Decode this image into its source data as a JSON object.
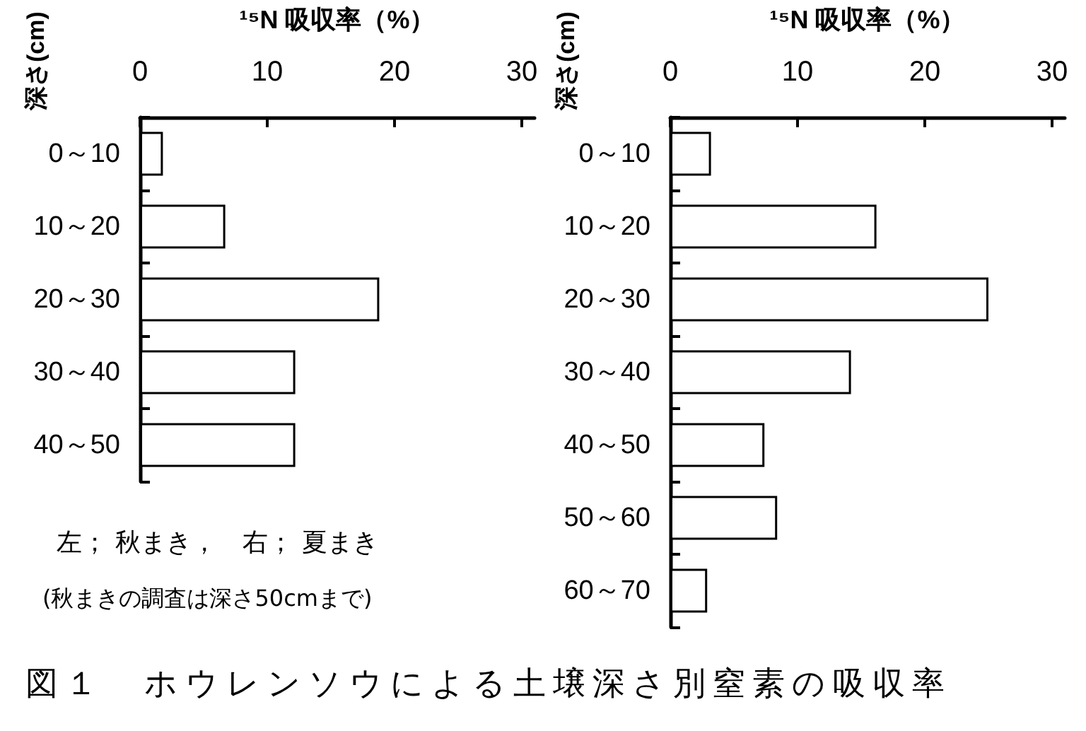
{
  "chart_data": [
    {
      "type": "bar",
      "orientation": "horizontal",
      "title": "図１　ホウレンソウによる土壌深さ別窒素の吸収率",
      "xlabel": "¹⁵N 吸収率（%）",
      "ylabel": "深さ(cm)",
      "categories": [
        "0～10",
        "10～20",
        "20～30",
        "30～40",
        "40～50"
      ],
      "series": [
        {
          "color": "#ffffff",
          "values": [
            1.8,
            6.7,
            18.8,
            12.2,
            12.2
          ]
        }
      ],
      "xlim": [
        0,
        31
      ],
      "xticks": [
        0,
        10,
        20,
        30
      ],
      "grid": false,
      "annotations": [
        "左； 秋まき，　右； 夏まき",
        "(秋まきの調査は深さ50cmまで)"
      ]
    },
    {
      "type": "bar",
      "orientation": "horizontal",
      "xlabel": "¹⁵N 吸収率（%）",
      "ylabel": "深さ(cm)",
      "categories": [
        "0～10",
        "10～20",
        "20～30",
        "30～40",
        "40～50",
        "50～60",
        "60～70"
      ],
      "series": [
        {
          "color": "#ffffff",
          "values": [
            3.2,
            16.2,
            25.0,
            14.2,
            7.4,
            8.4,
            2.9
          ]
        }
      ],
      "xlim": [
        0,
        31
      ],
      "xticks": [
        0,
        10,
        20,
        30
      ],
      "grid": false
    }
  ]
}
